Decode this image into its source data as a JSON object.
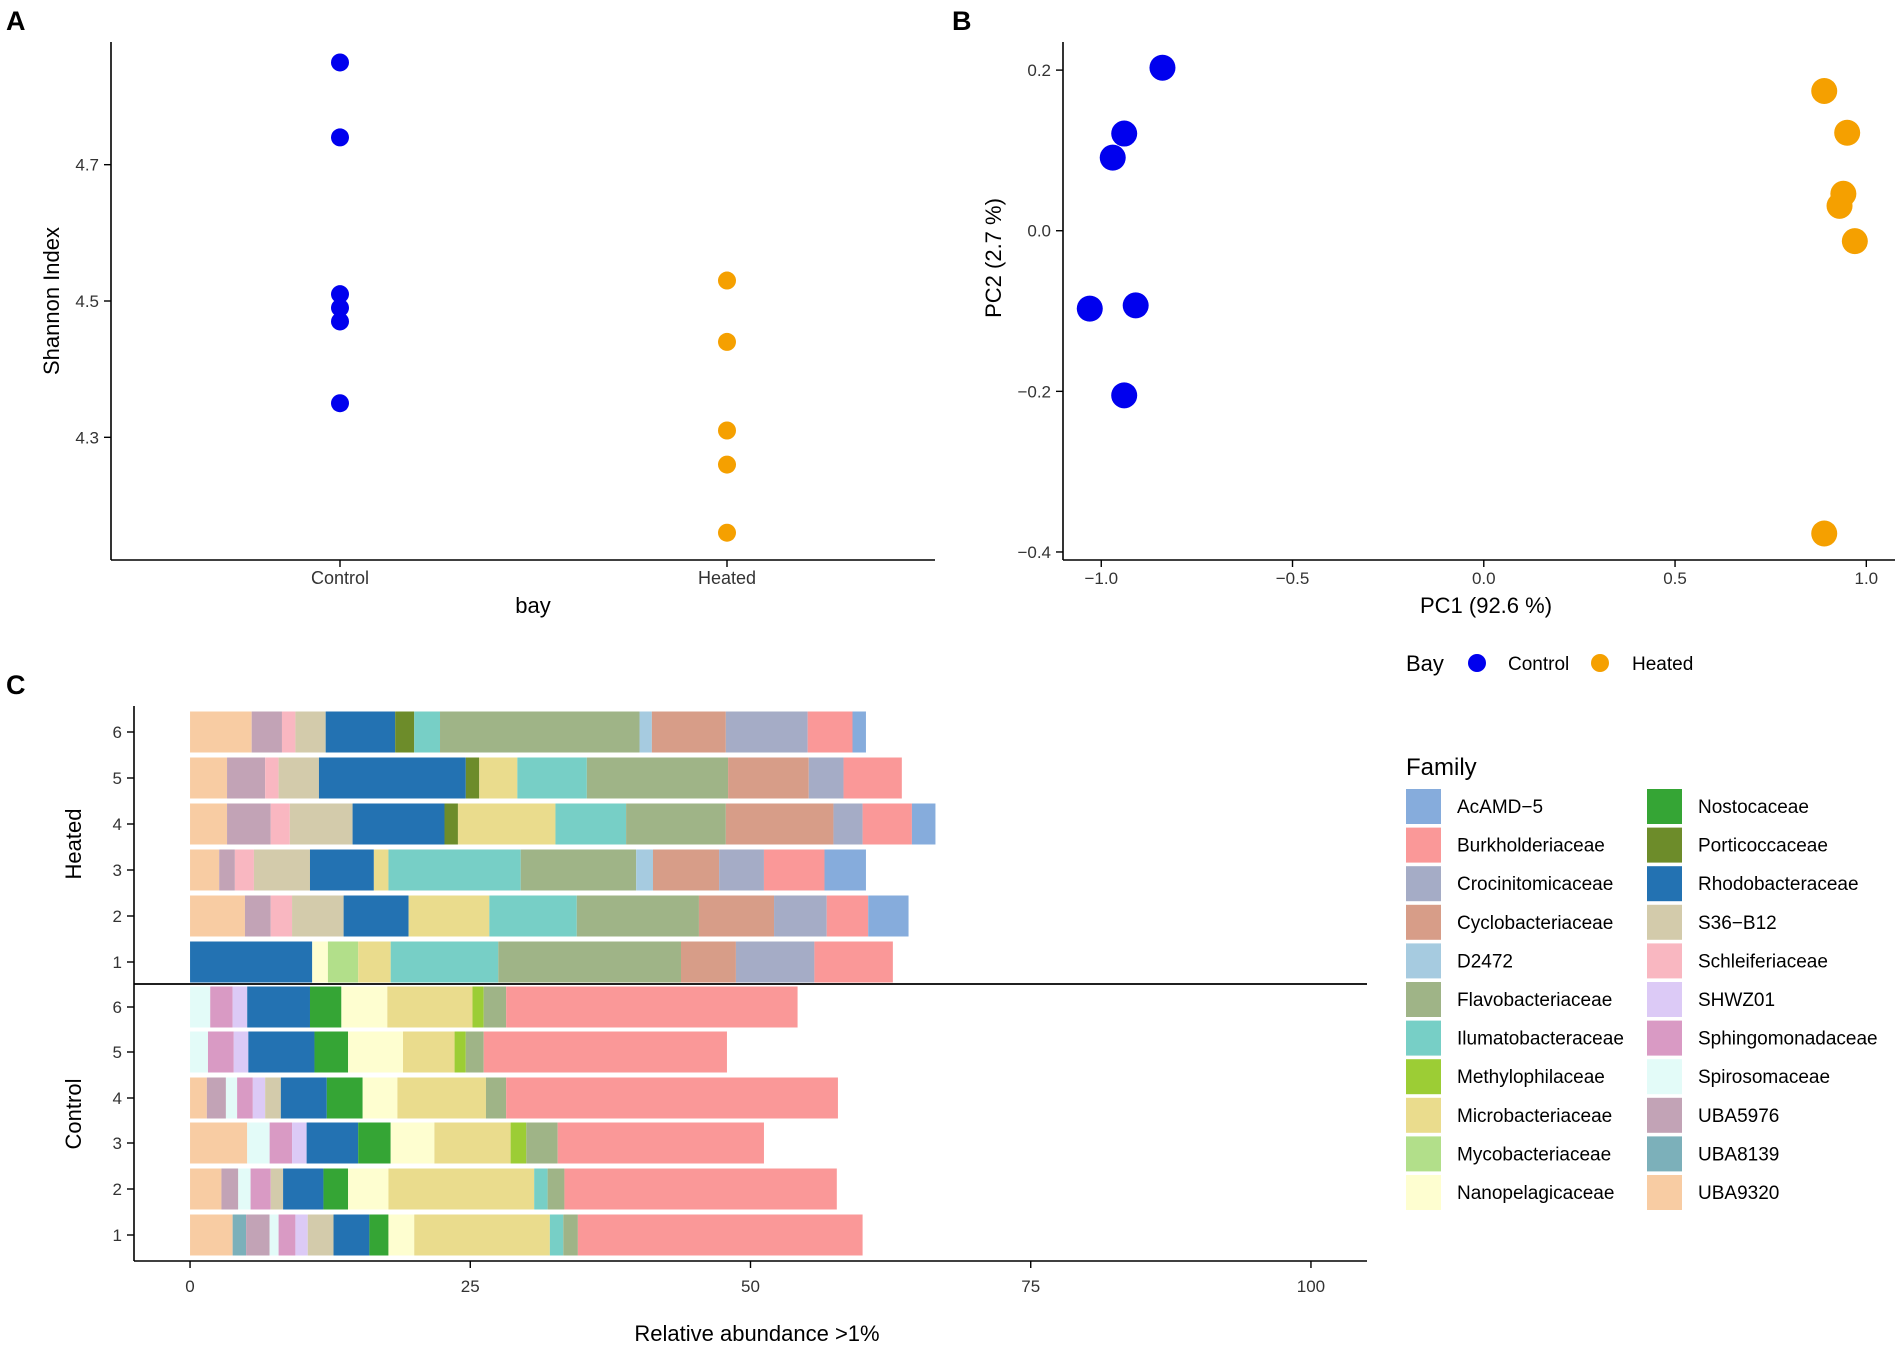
{
  "panel_labels": [
    "A",
    "B",
    "C"
  ],
  "chart_data": [
    {
      "panel": "A",
      "type": "scatter",
      "xlabel": "bay",
      "ylabel": "Shannon Index",
      "categories": [
        "Control",
        "Heated"
      ],
      "ylim": [
        4.12,
        4.88
      ],
      "yticks": [
        4.3,
        4.5,
        4.7
      ],
      "series": [
        {
          "name": "Control",
          "color": "#0000ee",
          "values": [
            4.85,
            4.74,
            4.51,
            4.49,
            4.47,
            4.35
          ]
        },
        {
          "name": "Heated",
          "color": "#f5a000",
          "values": [
            4.53,
            4.44,
            4.31,
            4.26,
            4.16
          ]
        }
      ]
    },
    {
      "panel": "B",
      "type": "scatter",
      "xlabel": "PC1 (92.6 %)",
      "ylabel": "PC2 (2.7 %)",
      "xlim": [
        -1.1,
        1.075
      ],
      "ylim": [
        -0.41,
        0.235
      ],
      "xticks": [
        -1.0,
        -0.5,
        0.0,
        0.5,
        1.0
      ],
      "xtick_labels": [
        "−1.0",
        "−0.5",
        "0.0",
        "0.5",
        "1.0"
      ],
      "yticks": [
        -0.4,
        -0.2,
        0.0,
        0.2
      ],
      "ytick_labels": [
        "−0.4",
        "−0.2",
        "0.0",
        "0.2"
      ],
      "legend_title": "Bay",
      "legend_position": "bottom",
      "series": [
        {
          "name": "Control",
          "color": "#0000ee",
          "points": [
            [
              -0.84,
              0.203
            ],
            [
              -0.94,
              0.121
            ],
            [
              -0.97,
              0.091
            ],
            [
              -1.03,
              -0.097
            ],
            [
              -0.91,
              -0.093
            ],
            [
              -0.94,
              -0.205
            ]
          ]
        },
        {
          "name": "Heated",
          "color": "#f5a000",
          "points": [
            [
              0.89,
              0.174
            ],
            [
              0.95,
              0.122
            ],
            [
              0.94,
              0.046
            ],
            [
              0.93,
              0.031
            ],
            [
              0.97,
              -0.013
            ],
            [
              0.89,
              -0.377
            ]
          ]
        }
      ]
    },
    {
      "panel": "C",
      "type": "bar",
      "orientation": "horizontal",
      "stacked": true,
      "xlabel": "Relative abundance >1%",
      "xlim": [
        -5,
        105
      ],
      "xticks": [
        0,
        25,
        50,
        75,
        100
      ],
      "groups": [
        {
          "name": "Heated",
          "rows": [
            "1",
            "2",
            "3",
            "4",
            "5",
            "6"
          ]
        },
        {
          "name": "Control",
          "rows": [
            "1",
            "2",
            "3",
            "4",
            "5",
            "6"
          ]
        }
      ],
      "legend_title": "Family",
      "families": [
        {
          "name": "AcAMD−5",
          "color": "#86acdc"
        },
        {
          "name": "Burkholderiaceae",
          "color": "#fa9898"
        },
        {
          "name": "Crocinitomicaceae",
          "color": "#a5acc6"
        },
        {
          "name": "Cyclobacteriaceae",
          "color": "#d79d88"
        },
        {
          "name": "D2472",
          "color": "#a6cbe0"
        },
        {
          "name": "Flavobacteriaceae",
          "color": "#9fb487"
        },
        {
          "name": "Ilumatobacteraceae",
          "color": "#77cfc6"
        },
        {
          "name": "Methylophilaceae",
          "color": "#9ccd35"
        },
        {
          "name": "Microbacteriaceae",
          "color": "#eadc8d"
        },
        {
          "name": "Mycobacteriaceae",
          "color": "#b2df8a"
        },
        {
          "name": "Nanopelagicaceae",
          "color": "#fefed0"
        },
        {
          "name": "Nostocaceae",
          "color": "#35a535"
        },
        {
          "name": "Porticoccaceae",
          "color": "#6d8c2a"
        },
        {
          "name": "Rhodobacteraceae",
          "color": "#2372b2"
        },
        {
          "name": "S36−B12",
          "color": "#d3cbab"
        },
        {
          "name": "Schleiferiaceae",
          "color": "#f9b7c1"
        },
        {
          "name": "SHWZ01",
          "color": "#dccaf6"
        },
        {
          "name": "Sphingomonadaceae",
          "color": "#d99ac4"
        },
        {
          "name": "Spirosomaceae",
          "color": "#e3fbf8"
        },
        {
          "name": "UBA5976",
          "color": "#c2a3b6"
        },
        {
          "name": "UBA8139",
          "color": "#7cb0ba"
        },
        {
          "name": "UBA9320",
          "color": "#f8cca3"
        }
      ],
      "series": [
        {
          "group": "Heated",
          "row": "6",
          "segments": [
            [
              "UBA9320",
              5.5
            ],
            [
              "UBA5976",
              2.7
            ],
            [
              "Schleiferiaceae",
              1.2
            ],
            [
              "S36−B12",
              2.7
            ],
            [
              "Rhodobacteraceae",
              6.2
            ],
            [
              "Porticoccaceae",
              1.7
            ],
            [
              "Ilumatobacteraceae",
              2.3
            ],
            [
              "Flavobacteriaceae",
              17.8
            ],
            [
              "D2472",
              1.1
            ],
            [
              "Cyclobacteriaceae",
              6.6
            ],
            [
              "Crocinitomicaceae",
              7.3
            ],
            [
              "Burkholderiaceae",
              4.0
            ],
            [
              "AcAMD−5",
              1.2
            ]
          ]
        },
        {
          "group": "Heated",
          "row": "5",
          "segments": [
            [
              "UBA9320",
              3.3
            ],
            [
              "UBA5976",
              3.4
            ],
            [
              "Schleiferiaceae",
              1.2
            ],
            [
              "S36−B12",
              3.6
            ],
            [
              "Rhodobacteraceae",
              13.1
            ],
            [
              "Porticoccaceae",
              1.2
            ],
            [
              "Microbacteriaceae",
              3.4
            ],
            [
              "Ilumatobacteraceae",
              6.2
            ],
            [
              "Flavobacteriaceae",
              12.6
            ],
            [
              "Cyclobacteriaceae",
              7.2
            ],
            [
              "Crocinitomicaceae",
              3.1
            ],
            [
              "Burkholderiaceae",
              5.2
            ]
          ]
        },
        {
          "group": "Heated",
          "row": "4",
          "segments": [
            [
              "UBA9320",
              3.3
            ],
            [
              "UBA5976",
              3.9
            ],
            [
              "Schleiferiaceae",
              1.7
            ],
            [
              "S36−B12",
              5.6
            ],
            [
              "Rhodobacteraceae",
              8.2
            ],
            [
              "Porticoccaceae",
              1.2
            ],
            [
              "Microbacteriaceae",
              8.7
            ],
            [
              "Ilumatobacteraceae",
              6.3
            ],
            [
              "Flavobacteriaceae",
              8.9
            ],
            [
              "Cyclobacteriaceae",
              9.6
            ],
            [
              "Crocinitomicaceae",
              2.6
            ],
            [
              "Burkholderiaceae",
              4.4
            ],
            [
              "AcAMD−5",
              2.1
            ]
          ]
        },
        {
          "group": "Heated",
          "row": "3",
          "segments": [
            [
              "UBA9320",
              2.6
            ],
            [
              "UBA5976",
              1.4
            ],
            [
              "Schleiferiaceae",
              1.7
            ],
            [
              "S36−B12",
              5.0
            ],
            [
              "Rhodobacteraceae",
              5.7
            ],
            [
              "Microbacteriaceae",
              1.3
            ],
            [
              "Ilumatobacteraceae",
              11.8
            ],
            [
              "Flavobacteriaceae",
              10.3
            ],
            [
              "D2472",
              1.5
            ],
            [
              "Cyclobacteriaceae",
              5.9
            ],
            [
              "Crocinitomicaceae",
              4.0
            ],
            [
              "Burkholderiaceae",
              5.4
            ],
            [
              "AcAMD−5",
              3.7
            ]
          ]
        },
        {
          "group": "Heated",
          "row": "2",
          "segments": [
            [
              "UBA9320",
              4.9
            ],
            [
              "UBA5976",
              2.3
            ],
            [
              "Schleiferiaceae",
              1.9
            ],
            [
              "S36−B12",
              4.6
            ],
            [
              "Rhodobacteraceae",
              5.8
            ],
            [
              "Microbacteriaceae",
              7.2
            ],
            [
              "Ilumatobacteraceae",
              7.8
            ],
            [
              "Flavobacteriaceae",
              10.9
            ],
            [
              "Cyclobacteriaceae",
              6.7
            ],
            [
              "Crocinitomicaceae",
              4.7
            ],
            [
              "Burkholderiaceae",
              3.7
            ],
            [
              "AcAMD−5",
              3.6
            ]
          ]
        },
        {
          "group": "Heated",
          "row": "1",
          "segments": [
            [
              "Rhodobacteraceae",
              10.9
            ],
            [
              "Nanopelagicaceae",
              1.4
            ],
            [
              "Mycobacteriaceae",
              2.7
            ],
            [
              "Microbacteriaceae",
              2.9
            ],
            [
              "Ilumatobacteraceae",
              9.6
            ],
            [
              "Flavobacteriaceae",
              16.3
            ],
            [
              "Cyclobacteriaceae",
              4.9
            ],
            [
              "Crocinitomicaceae",
              7.0
            ],
            [
              "Burkholderiaceae",
              7.0
            ]
          ]
        },
        {
          "group": "Control",
          "row": "6",
          "segments": [
            [
              "Spirosomaceae",
              1.8
            ],
            [
              "Sphingomonadaceae",
              2.0
            ],
            [
              "SHWZ01",
              1.3
            ],
            [
              "Rhodobacteraceae",
              5.6
            ],
            [
              "Nostocaceae",
              2.8
            ],
            [
              "Nanopelagicaceae",
              4.1
            ],
            [
              "Microbacteriaceae",
              7.6
            ],
            [
              "Methylophilaceae",
              1.0
            ],
            [
              "Flavobacteriaceae",
              2.0
            ],
            [
              "Burkholderiaceae",
              26.0
            ]
          ]
        },
        {
          "group": "Control",
          "row": "5",
          "segments": [
            [
              "Spirosomaceae",
              1.6
            ],
            [
              "Sphingomonadaceae",
              2.3
            ],
            [
              "SHWZ01",
              1.3
            ],
            [
              "Rhodobacteraceae",
              5.9
            ],
            [
              "Nostocaceae",
              3.0
            ],
            [
              "Nanopelagicaceae",
              4.9
            ],
            [
              "Microbacteriaceae",
              4.6
            ],
            [
              "Methylophilaceae",
              1.0
            ],
            [
              "Flavobacteriaceae",
              1.6
            ],
            [
              "Burkholderiaceae",
              21.7
            ]
          ]
        },
        {
          "group": "Control",
          "row": "4",
          "segments": [
            [
              "UBA9320",
              1.5
            ],
            [
              "UBA5976",
              1.7
            ],
            [
              "Spirosomaceae",
              1.0
            ],
            [
              "Sphingomonadaceae",
              1.4
            ],
            [
              "SHWZ01",
              1.1
            ],
            [
              "S36−B12",
              1.4
            ],
            [
              "Rhodobacteraceae",
              4.1
            ],
            [
              "Nostocaceae",
              3.2
            ],
            [
              "Nanopelagicaceae",
              3.1
            ],
            [
              "Microbacteriaceae",
              7.9
            ],
            [
              "Flavobacteriaceae",
              1.8
            ],
            [
              "Burkholderiaceae",
              29.6
            ]
          ]
        },
        {
          "group": "Control",
          "row": "3",
          "segments": [
            [
              "UBA9320",
              5.1
            ],
            [
              "Spirosomaceae",
              2.0
            ],
            [
              "Sphingomonadaceae",
              2.0
            ],
            [
              "SHWZ01",
              1.3
            ],
            [
              "Rhodobacteraceae",
              4.6
            ],
            [
              "Nostocaceae",
              2.9
            ],
            [
              "Nanopelagicaceae",
              3.9
            ],
            [
              "Microbacteriaceae",
              6.8
            ],
            [
              "Methylophilaceae",
              1.4
            ],
            [
              "Flavobacteriaceae",
              2.8
            ],
            [
              "Burkholderiaceae",
              18.4
            ]
          ]
        },
        {
          "group": "Control",
          "row": "2",
          "segments": [
            [
              "UBA9320",
              2.8
            ],
            [
              "UBA5976",
              1.5
            ],
            [
              "Spirosomaceae",
              1.1
            ],
            [
              "Sphingomonadaceae",
              1.8
            ],
            [
              "S36−B12",
              1.1
            ],
            [
              "Rhodobacteraceae",
              3.6
            ],
            [
              "Nostocaceae",
              2.2
            ],
            [
              "Nanopelagicaceae",
              3.6
            ],
            [
              "Microbacteriaceae",
              13.0
            ],
            [
              "Ilumatobacteraceae",
              1.2
            ],
            [
              "Flavobacteriaceae",
              1.5
            ],
            [
              "Burkholderiaceae",
              24.3
            ]
          ]
        },
        {
          "group": "Control",
          "row": "1",
          "segments": [
            [
              "UBA9320",
              3.8
            ],
            [
              "UBA8139",
              1.2
            ],
            [
              "UBA5976",
              2.1
            ],
            [
              "Spirosomaceae",
              0.8
            ],
            [
              "Sphingomonadaceae",
              1.5
            ],
            [
              "SHWZ01",
              1.1
            ],
            [
              "S36−B12",
              2.3
            ],
            [
              "Rhodobacteraceae",
              3.2
            ],
            [
              "Nostocaceae",
              1.7
            ],
            [
              "Nanopelagicaceae",
              2.3
            ],
            [
              "Microbacteriaceae",
              12.1
            ],
            [
              "Ilumatobacteraceae",
              1.2
            ],
            [
              "Flavobacteriaceae",
              1.3
            ],
            [
              "Burkholderiaceae",
              25.4
            ]
          ]
        }
      ]
    }
  ]
}
